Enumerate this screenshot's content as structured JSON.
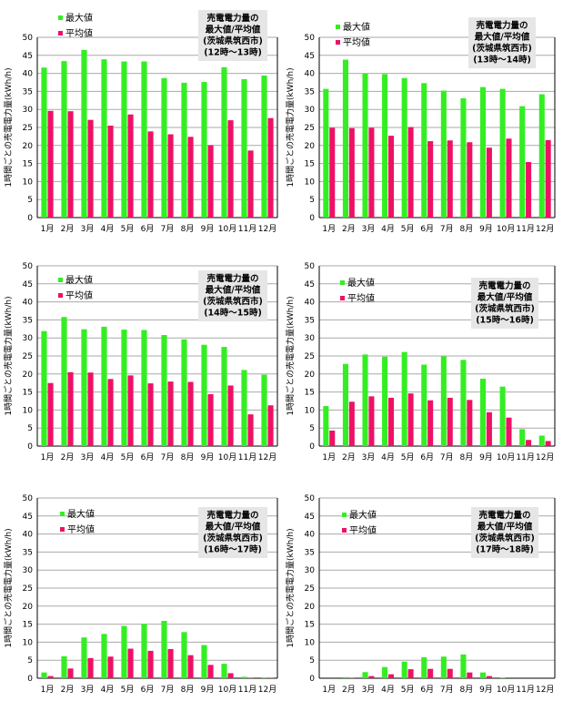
{
  "charts": [
    {
      "id": "c12",
      "ymax": 50,
      "note": [
        "売電電力量の",
        "最大値/平均値",
        "(茨城県筑西市)",
        "(12時〜13時)"
      ],
      "max": [
        41.6,
        43.4,
        46.5,
        43.9,
        43.3,
        43.3,
        38.7,
        37.4,
        37.6,
        41.7,
        38.4,
        39.4
      ],
      "avg": [
        29.6,
        29.5,
        27.1,
        25.5,
        28.6,
        23.9,
        23.1,
        22.4,
        20.1,
        27.0,
        18.6,
        27.6
      ]
    },
    {
      "id": "c13",
      "ymax": 50,
      "note": [
        "売電電力量の",
        "最大値/平均値",
        "(茨城県筑西市)",
        "(13時〜14時)"
      ],
      "max": [
        35.7,
        43.8,
        39.9,
        39.8,
        38.7,
        37.3,
        35.2,
        33.1,
        36.2,
        35.7,
        30.9,
        34.2
      ],
      "avg": [
        24.9,
        24.8,
        24.9,
        22.7,
        25.1,
        21.2,
        21.4,
        20.9,
        19.4,
        21.9,
        15.4,
        21.5
      ]
    },
    {
      "id": "c14",
      "ymax": 50,
      "note": [
        "売電電力量の",
        "最大値/平均値",
        "(茨城県筑西市)",
        "(14時〜15時)"
      ],
      "max": [
        31.9,
        35.8,
        32.4,
        33.1,
        32.3,
        32.2,
        30.8,
        29.6,
        28.1,
        27.5,
        21.1,
        19.8
      ],
      "avg": [
        17.5,
        20.5,
        20.4,
        18.6,
        19.6,
        17.4,
        17.9,
        17.8,
        14.4,
        16.8,
        8.8,
        11.3
      ]
    },
    {
      "id": "c15",
      "ymax": 50,
      "note": [
        "売電電力量の",
        "最大値/平均値",
        "(茨城県筑西市)",
        "(15時〜16時)"
      ],
      "max": [
        11.1,
        22.8,
        25.4,
        24.8,
        26.1,
        22.6,
        24.9,
        23.9,
        18.7,
        16.5,
        4.7,
        2.9
      ],
      "avg": [
        4.3,
        12.3,
        13.8,
        13.4,
        14.6,
        12.7,
        13.4,
        12.8,
        9.4,
        7.9,
        1.7,
        1.4
      ]
    },
    {
      "id": "c16",
      "ymax": 50,
      "note": [
        "売電電力量の",
        "最大値/平均値",
        "(茨城県筑西市)",
        "(16時〜17時)"
      ],
      "max": [
        1.6,
        6.1,
        11.3,
        12.3,
        14.5,
        15.1,
        15.9,
        12.8,
        9.2,
        4.0,
        0.4,
        0.2
      ],
      "avg": [
        0.6,
        2.7,
        5.6,
        6.0,
        8.2,
        7.6,
        8.1,
        6.4,
        3.7,
        1.4,
        0.1,
        0.1
      ]
    },
    {
      "id": "c17",
      "ymax": 50,
      "note": [
        "売電電力量の",
        "最大値/平均値",
        "(茨城県筑西市)",
        "(17時〜18時)"
      ],
      "max": [
        0.0,
        0.3,
        1.7,
        3.1,
        4.6,
        5.8,
        6.0,
        6.6,
        1.6,
        0.2,
        0.0,
        0.0
      ],
      "avg": [
        0.0,
        0.1,
        0.6,
        1.1,
        2.5,
        2.6,
        2.6,
        1.6,
        0.6,
        0.0,
        0.0,
        0.0
      ]
    }
  ],
  "months": [
    "1月",
    "2月",
    "3月",
    "4月",
    "5月",
    "6月",
    "7月",
    "8月",
    "9月",
    "10月",
    "11月",
    "12月"
  ],
  "legend": {
    "max": "最大値",
    "avg": "平均値"
  },
  "ylabel": "1時間ごとの売電電力量(kWh/h)",
  "colors": {
    "max": "#33ee22",
    "avg": "#ee1166",
    "grid": "#aaaaaa",
    "axis": "#000000",
    "note_bg": "#e6e6e6"
  }
}
